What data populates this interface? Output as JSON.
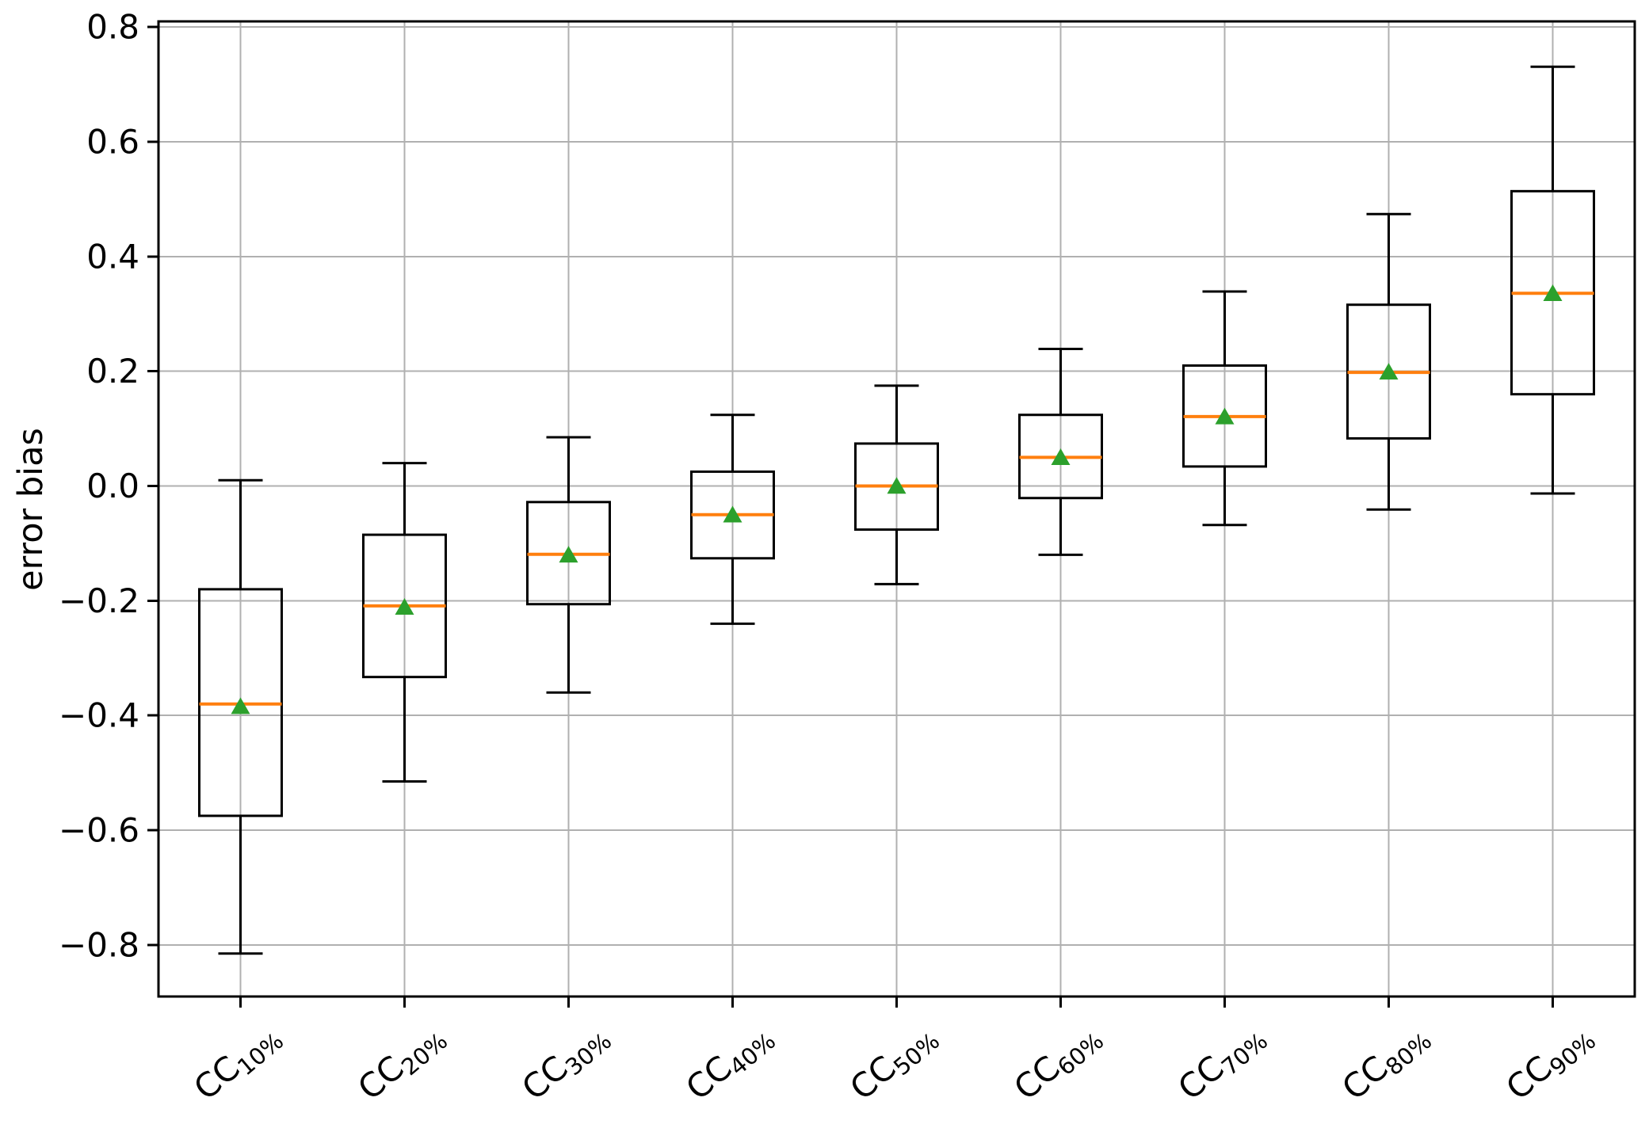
{
  "chart_data": {
    "type": "boxplot",
    "title": "",
    "xlabel": "",
    "ylabel": "error bias",
    "grid": true,
    "legend": false,
    "ylim": [
      -0.89,
      0.81
    ],
    "yticks": [
      {
        "value": 0.8,
        "label": "0.8"
      },
      {
        "value": 0.6,
        "label": "0.6"
      },
      {
        "value": 0.4,
        "label": "0.4"
      },
      {
        "value": 0.2,
        "label": "0.2"
      },
      {
        "value": 0.0,
        "label": "0.0"
      },
      {
        "value": -0.2,
        "label": "−0.2"
      },
      {
        "value": -0.4,
        "label": "−0.4"
      },
      {
        "value": -0.6,
        "label": "−0.6"
      },
      {
        "value": -0.8,
        "label": "−0.8"
      }
    ],
    "categories": [
      "CC10%",
      "CC20%",
      "CC30%",
      "CC40%",
      "CC50%",
      "CC60%",
      "CC70%",
      "CC80%",
      "CC90%"
    ],
    "x_tick_rotation_deg": -40,
    "mean_marker_shape": "triangle-up",
    "boxes": [
      {
        "label_main": "CC",
        "label_sub": "10%",
        "whislo": -0.815,
        "q1": -0.575,
        "med": -0.38,
        "mean": -0.385,
        "q3": -0.18,
        "whishi": 0.01
      },
      {
        "label_main": "CC",
        "label_sub": "20%",
        "whislo": -0.515,
        "q1": -0.333,
        "med": -0.209,
        "mean": -0.212,
        "q3": -0.085,
        "whishi": 0.04
      },
      {
        "label_main": "CC",
        "label_sub": "30%",
        "whislo": -0.36,
        "q1": -0.206,
        "med": -0.119,
        "mean": -0.121,
        "q3": -0.028,
        "whishi": 0.085
      },
      {
        "label_main": "CC",
        "label_sub": "40%",
        "whislo": -0.24,
        "q1": -0.126,
        "med": -0.05,
        "mean": -0.051,
        "q3": 0.025,
        "whishi": 0.124
      },
      {
        "label_main": "CC",
        "label_sub": "50%",
        "whislo": -0.171,
        "q1": -0.076,
        "med": 0.0,
        "mean": -0.001,
        "q3": 0.074,
        "whishi": 0.175
      },
      {
        "label_main": "CC",
        "label_sub": "60%",
        "whislo": -0.12,
        "q1": -0.021,
        "med": 0.05,
        "mean": 0.049,
        "q3": 0.124,
        "whishi": 0.239
      },
      {
        "label_main": "CC",
        "label_sub": "70%",
        "whislo": -0.068,
        "q1": 0.034,
        "med": 0.121,
        "mean": 0.12,
        "q3": 0.21,
        "whishi": 0.339
      },
      {
        "label_main": "CC",
        "label_sub": "80%",
        "whislo": -0.041,
        "q1": 0.083,
        "med": 0.198,
        "mean": 0.198,
        "q3": 0.316,
        "whishi": 0.474
      },
      {
        "label_main": "CC",
        "label_sub": "90%",
        "whislo": -0.013,
        "q1": 0.16,
        "med": 0.336,
        "mean": 0.335,
        "q3": 0.514,
        "whishi": 0.731
      }
    ],
    "colors": {
      "box": "#000000",
      "whisker": "#000000",
      "median": "#ff7f0e",
      "mean_marker": "#2ca02c",
      "grid": "#b0b0b0",
      "background": "#ffffff",
      "text": "#000000"
    }
  }
}
